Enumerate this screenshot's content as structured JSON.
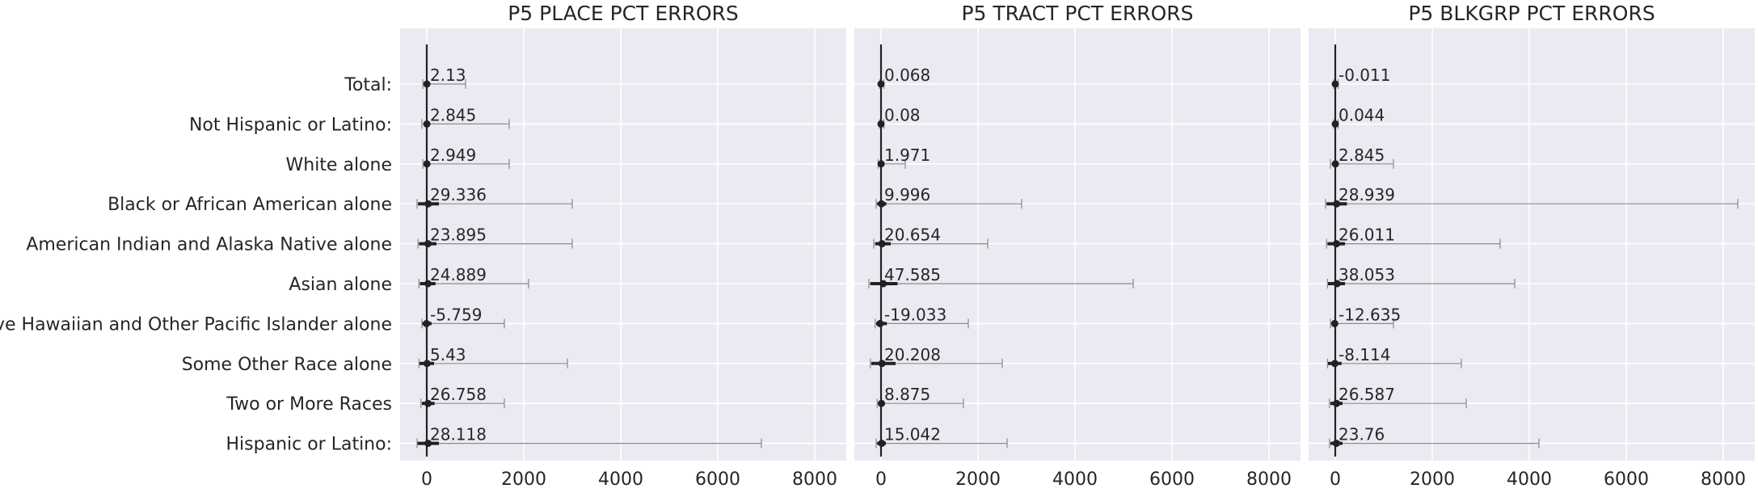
{
  "figure": {
    "categories": [
      "Total:",
      "Not Hispanic or Latino:",
      "White alone",
      "Black or African American alone",
      "American Indian and Alaska Native alone",
      "Asian alone",
      "Native Hawaiian and Other Pacific Islander alone",
      "Some Other Race alone",
      "Two or More Races",
      "Hispanic or Latino:"
    ],
    "x_ticks": [
      "0",
      "2000",
      "4000",
      "6000",
      "8000"
    ],
    "colors": {
      "background": "#eaeaf2",
      "grid": "#ffffff",
      "mark": "#222222",
      "whisker": "#888888"
    }
  },
  "chart_data": [
    {
      "type": "errorbar",
      "title": "P5 PLACE PCT ERRORS",
      "xlim": [
        -550,
        8650
      ],
      "x_ticks": [
        0,
        2000,
        4000,
        6000,
        8000
      ],
      "grid": true,
      "labels": [
        "2.13",
        "2.845",
        "2.949",
        "29.336",
        "23.895",
        "24.889",
        "-5.759",
        "5.43",
        "26.758",
        "28.118"
      ],
      "values": [
        2.13,
        2.845,
        2.949,
        29.336,
        23.895,
        24.889,
        -5.759,
        5.43,
        26.758,
        28.118
      ],
      "thick_low": [
        -40,
        -50,
        -40,
        -180,
        -160,
        -140,
        -90,
        -150,
        -100,
        -190
      ],
      "thick_high": [
        40,
        50,
        40,
        250,
        200,
        180,
        100,
        150,
        160,
        250
      ],
      "whisker_low": [
        -80,
        -100,
        -80,
        -200,
        -180,
        -160,
        -100,
        -160,
        -120,
        -200
      ],
      "whisker_high": [
        800,
        1700,
        1700,
        3000,
        3000,
        2100,
        1600,
        2900,
        1600,
        6900
      ]
    },
    {
      "type": "errorbar",
      "title": "P5 TRACT PCT ERRORS",
      "xlim": [
        -550,
        8650
      ],
      "x_ticks": [
        0,
        2000,
        4000,
        6000,
        8000
      ],
      "grid": true,
      "labels": [
        "0.068",
        "0.08",
        "1.971",
        "9.996",
        "20.654",
        "47.585",
        "-19.033",
        "20.208",
        "8.875",
        "15.042"
      ],
      "values": [
        0.068,
        0.08,
        1.971,
        9.996,
        20.654,
        47.585,
        -19.033,
        20.208,
        8.875,
        15.042
      ],
      "thick_low": [
        -20,
        -20,
        -40,
        -80,
        -120,
        -220,
        -100,
        -200,
        -60,
        -80
      ],
      "thick_high": [
        20,
        20,
        40,
        110,
        200,
        340,
        120,
        300,
        80,
        100
      ],
      "whisker_low": [
        -30,
        -30,
        -60,
        -100,
        -150,
        -250,
        -120,
        -220,
        -80,
        -100
      ],
      "whisker_high": [
        60,
        60,
        500,
        2900,
        2200,
        5200,
        1800,
        2500,
        1700,
        2600
      ]
    },
    {
      "type": "errorbar",
      "title": "P5 BLKGRP PCT ERRORS",
      "xlim": [
        -550,
        8650
      ],
      "x_ticks": [
        0,
        2000,
        4000,
        6000,
        8000
      ],
      "grid": true,
      "labels": [
        "-0.011",
        "0.044",
        "2.845",
        "28.939",
        "26.011",
        "38.053",
        "-12.635",
        "-8.114",
        "26.587",
        "23.76"
      ],
      "values": [
        -0.011,
        0.044,
        2.845,
        28.939,
        26.011,
        38.053,
        -12.635,
        -8.114,
        26.587,
        23.76
      ],
      "thick_low": [
        -20,
        -20,
        -40,
        -180,
        -160,
        -150,
        -60,
        -150,
        -100,
        -100
      ],
      "thick_high": [
        20,
        20,
        40,
        240,
        200,
        200,
        60,
        130,
        150,
        150
      ],
      "whisker_low": [
        -30,
        -30,
        -100,
        -200,
        -180,
        -160,
        -100,
        -160,
        -120,
        -120
      ],
      "whisker_high": [
        60,
        60,
        1200,
        8300,
        3400,
        3700,
        1200,
        2600,
        2700,
        4200
      ]
    }
  ]
}
